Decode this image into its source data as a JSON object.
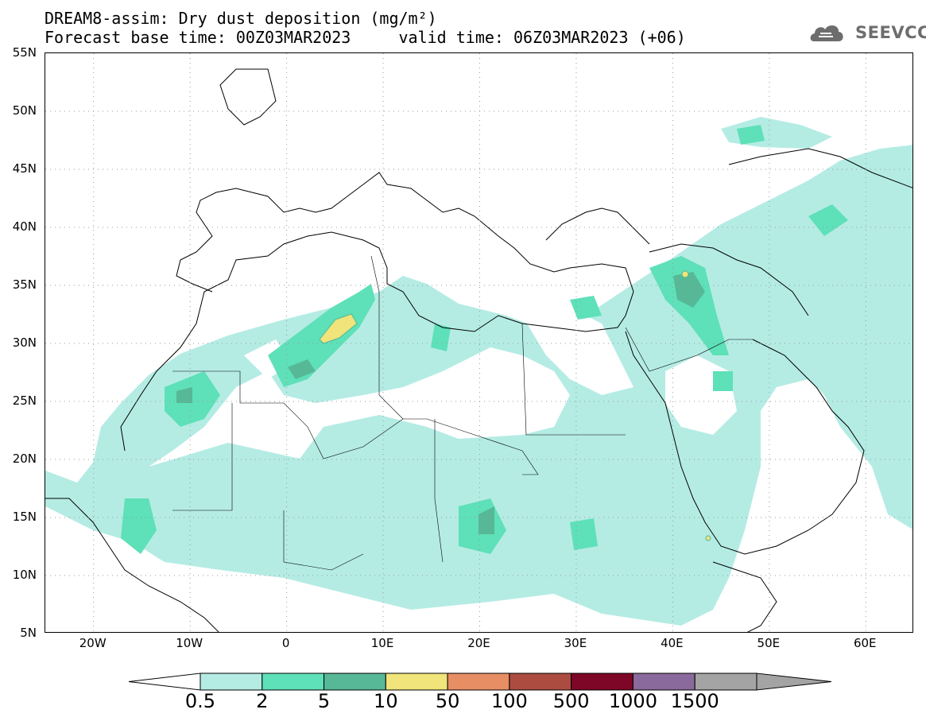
{
  "title": {
    "line1": "DREAM8-assim: Dry dust deposition (mg/m²)",
    "line2": "Forecast base time: 00Z03MAR2023     valid time: 06Z03MAR2023 (+06)"
  },
  "logo": {
    "text": "SEEVCCC",
    "icon": "cloud-icon"
  },
  "map": {
    "region": "North Africa, Middle East and Europe",
    "projection": "lat-lon",
    "lon_range": [
      -25,
      65
    ],
    "lat_range": [
      5,
      55
    ],
    "grid": "dotted",
    "lat_labels": [
      "55N",
      "50N",
      "45N",
      "40N",
      "35N",
      "30N",
      "25N",
      "20N",
      "15N",
      "10N",
      "5N"
    ],
    "lon_labels": [
      "20W",
      "10W",
      "0",
      "10E",
      "20E",
      "30E",
      "40E",
      "50E",
      "60E"
    ]
  },
  "legend": {
    "levels": [
      "0.5",
      "2",
      "5",
      "10",
      "50",
      "100",
      "500",
      "1000",
      "1500"
    ],
    "colors": [
      "#b4ece4",
      "#5ee0b8",
      "#56b896",
      "#f0e47a",
      "#e88e64",
      "#ac4c40",
      "#7e0626",
      "#8a6a9c",
      "#a4a4a4"
    ],
    "extend": "both",
    "left_arrow_color": "#ffffff",
    "right_arrow_color": "#a4a4a4"
  }
}
